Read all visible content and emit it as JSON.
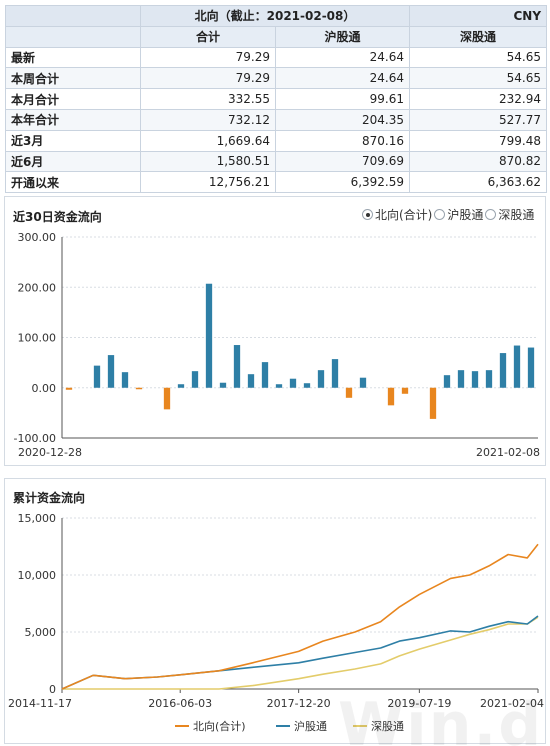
{
  "summary": {
    "title": "北向（截止：2021-02-08）",
    "currency": "CNY",
    "col_headers": [
      "合计",
      "沪股通",
      "深股通"
    ],
    "rows": [
      {
        "label": "最新",
        "total": "79.29",
        "sh": "24.64",
        "sz": "54.65"
      },
      {
        "label": "本周合计",
        "total": "79.29",
        "sh": "24.64",
        "sz": "54.65"
      },
      {
        "label": "本月合计",
        "total": "332.55",
        "sh": "99.61",
        "sz": "232.94"
      },
      {
        "label": "本年合计",
        "total": "732.12",
        "sh": "204.35",
        "sz": "527.77"
      },
      {
        "label": "近3月",
        "total": "1,669.64",
        "sh": "870.16",
        "sz": "799.48"
      },
      {
        "label": "近6月",
        "total": "1,580.51",
        "sh": "709.69",
        "sz": "870.82"
      },
      {
        "label": "开通以来",
        "total": "12,756.21",
        "sh": "6,392.59",
        "sz": "6,363.62"
      }
    ]
  },
  "chart1": {
    "title": "近30日资金流向",
    "radio_options": [
      {
        "label": "北向(合计)",
        "selected": true
      },
      {
        "label": "沪股通",
        "selected": false
      },
      {
        "label": "深股通",
        "selected": false
      }
    ]
  },
  "chart2": {
    "title": "累计资金流向"
  },
  "watermark": "Win.d",
  "colors": {
    "bar_positive": "#2e7fa6",
    "bar_negative": "#e8861f",
    "line_total": "#e8861f",
    "line_sh": "#2e7fa6",
    "line_sz": "#e3cc6a",
    "grid": "#d8dde3"
  },
  "chart_data": [
    {
      "type": "bar",
      "title": "近30日资金流向",
      "x_start_label": "2020-12-28",
      "x_end_label": "2021-02-08",
      "y_ticks": [
        "300.00",
        "200.00",
        "100.00",
        "0.00",
        "-100.00"
      ],
      "ylim": [
        -100,
        300
      ],
      "grid": true,
      "series": [
        {
          "name": "北向(合计)",
          "values": [
            -4,
            0,
            44,
            65,
            31,
            -3,
            0,
            -43,
            7,
            33,
            207,
            10,
            85,
            27,
            51,
            7,
            18,
            9,
            35,
            57,
            -20,
            20,
            0,
            -35,
            -12,
            0,
            -62,
            25,
            35,
            33,
            35,
            69,
            84,
            80
          ]
        }
      ]
    },
    {
      "type": "line",
      "title": "累计资金流向",
      "x_tick_labels": [
        "2014-11-17",
        "2016-06-03",
        "2017-12-20",
        "2019-07-19",
        "2021-02-04"
      ],
      "x": [
        "2014-11-17",
        "2015-04-15",
        "2015-09-15",
        "2016-02-15",
        "2016-06-03",
        "2016-12-05",
        "2017-05-15",
        "2017-12-20",
        "2018-04-15",
        "2018-09-15",
        "2019-01-15",
        "2019-04-15",
        "2019-07-19",
        "2019-12-15",
        "2020-03-15",
        "2020-06-15",
        "2020-09-15",
        "2020-12-15",
        "2021-02-04"
      ],
      "y_ticks": [
        "15,000",
        "10,000",
        "5,000",
        "0"
      ],
      "ylim": [
        0,
        15000
      ],
      "grid": true,
      "legend_position": "bottom",
      "series": [
        {
          "name": "北向(合计)",
          "values": [
            0,
            1200,
            900,
            1050,
            1250,
            1600,
            2300,
            3300,
            4200,
            5000,
            5900,
            7200,
            8300,
            9700,
            10000,
            10800,
            11800,
            11500,
            12700
          ]
        },
        {
          "name": "沪股通",
          "values": [
            0,
            1200,
            900,
            1050,
            1250,
            1600,
            1900,
            2300,
            2700,
            3200,
            3600,
            4200,
            4500,
            5100,
            5000,
            5500,
            5900,
            5700,
            6400
          ]
        },
        {
          "name": "深股通",
          "values": [
            0,
            0,
            0,
            0,
            0,
            0,
            300,
            900,
            1300,
            1750,
            2200,
            2900,
            3500,
            4300,
            4800,
            5200,
            5700,
            5700,
            6300
          ]
        }
      ]
    }
  ]
}
